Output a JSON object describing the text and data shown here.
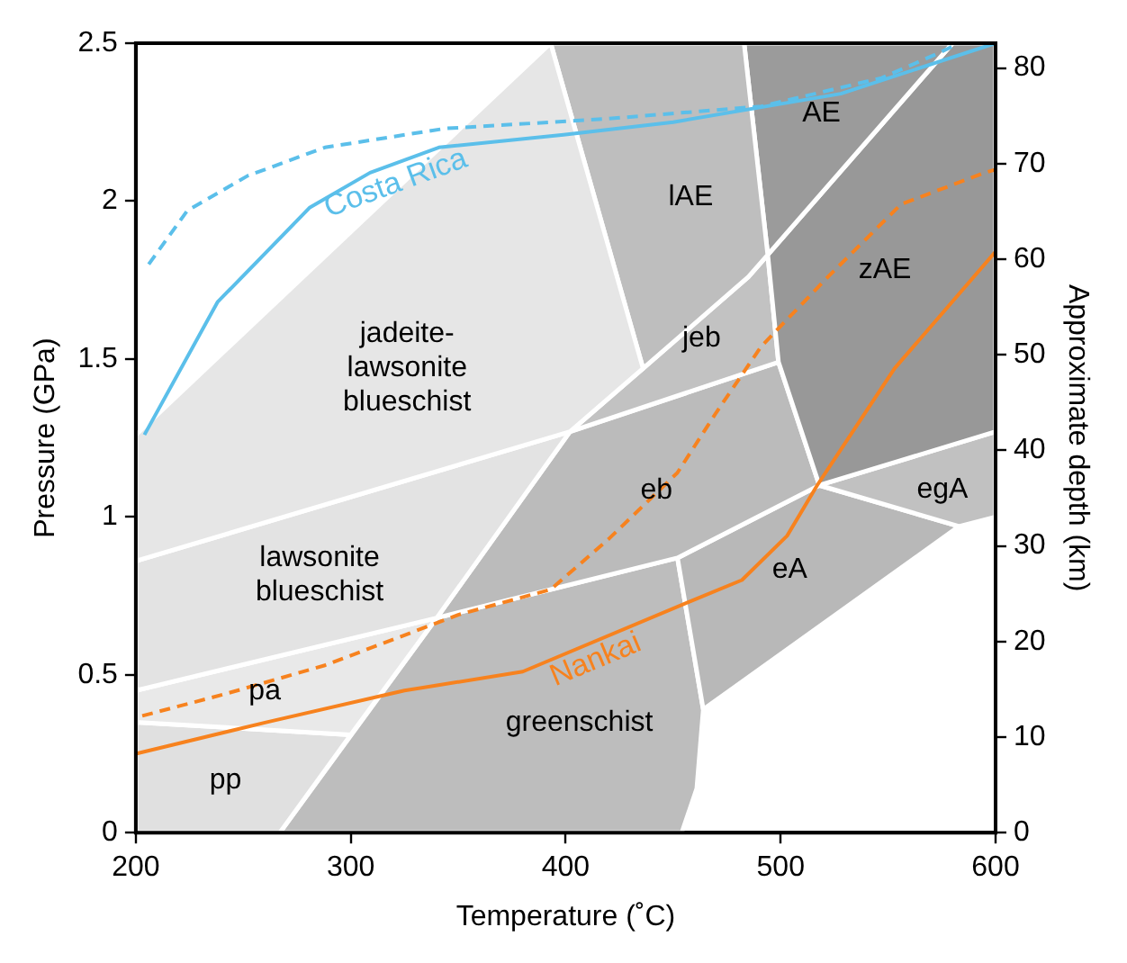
{
  "chart_data": {
    "type": "line",
    "xlabel": "Temperature (˚C)",
    "ylabel": "Pressure (GPa)",
    "y2label": "Approximate depth (km)",
    "xlim": [
      200,
      600
    ],
    "xticks": [
      200,
      300,
      400,
      500,
      600
    ],
    "ylim": [
      0,
      2.5
    ],
    "yticks": [
      0,
      0.5,
      1.0,
      1.5,
      2.0,
      2.5
    ],
    "y2lim": [
      0,
      82.6
    ],
    "y2ticks": [
      0,
      10,
      20,
      30,
      40,
      50,
      60,
      70,
      80
    ],
    "grid": false,
    "legend": false,
    "marker": "none",
    "series": [
      {
        "type": "area",
        "name": "jadeite-\nlawsonite\nblueschist",
        "color": "#e6e6e6",
        "x": [
          200,
          393,
          436,
          402,
          200
        ],
        "values": [
          1.26,
          2.5,
          1.47,
          1.27,
          0.86
        ]
      },
      {
        "type": "area",
        "name": "lawsonite\nblueschist",
        "color": "#e3e3e3",
        "x": [
          200,
          402,
          340,
          200
        ],
        "values": [
          0.86,
          1.27,
          0.68,
          0.45
        ]
      },
      {
        "type": "area",
        "name": "pa",
        "color": "#e9e9e9",
        "x": [
          200,
          340,
          300,
          200
        ],
        "values": [
          0.45,
          0.68,
          0.31,
          0.35
        ]
      },
      {
        "type": "area",
        "name": "pp",
        "color": "#e0e0e0",
        "x": [
          200,
          300,
          267,
          200
        ],
        "values": [
          0.35,
          0.31,
          0,
          0
        ]
      },
      {
        "type": "area",
        "name": "lAE",
        "color": "#bebebe",
        "x": [
          393,
          483,
          494,
          485,
          436
        ],
        "values": [
          2.5,
          2.5,
          1.83,
          1.76,
          1.47
        ]
      },
      {
        "type": "area",
        "name": "AE",
        "color": "#9b9b9b",
        "x": [
          483,
          580,
          494
        ],
        "values": [
          2.5,
          2.5,
          1.83
        ]
      },
      {
        "type": "area",
        "name": "zAE",
        "color": "#989898",
        "x": [
          494,
          580,
          600,
          600,
          518,
          499
        ],
        "values": [
          1.83,
          2.5,
          2.5,
          1.27,
          1.1,
          1.49
        ]
      },
      {
        "type": "area",
        "name": "jeb",
        "color": "#c2c2c2",
        "x": [
          436,
          485,
          494,
          499,
          402
        ],
        "values": [
          1.47,
          1.76,
          1.83,
          1.49,
          1.27
        ]
      },
      {
        "type": "area",
        "name": "eb",
        "color": "#bbbbbb",
        "x": [
          402,
          499,
          518,
          452,
          340
        ],
        "values": [
          1.27,
          1.49,
          1.1,
          0.87,
          0.68
        ]
      },
      {
        "type": "area",
        "name": "egA",
        "color": "#c1c1c1",
        "x": [
          518,
          600,
          600,
          583
        ],
        "values": [
          1.1,
          1.27,
          1.0,
          0.97
        ]
      },
      {
        "type": "area",
        "name": "eA",
        "color": "#b8b8b8",
        "x": [
          452,
          518,
          583,
          464
        ],
        "values": [
          0.87,
          1.1,
          0.97,
          0.39
        ]
      },
      {
        "type": "area",
        "name": "greenschist",
        "color": "#bdbdbd",
        "x": [
          267,
          340,
          452,
          464,
          461,
          454
        ],
        "values": [
          0,
          0.68,
          0.87,
          0.39,
          0.14,
          0
        ]
      },
      {
        "type": "line",
        "color": "#5bbfea",
        "line_style": "dashed",
        "x": [
          206,
          224,
          252,
          288,
          344,
          418,
          491,
          547,
          574,
          583
        ],
        "values": [
          1.8,
          1.97,
          2.08,
          2.17,
          2.23,
          2.26,
          2.3,
          2.39,
          2.47,
          2.5
        ]
      },
      {
        "type": "line",
        "name": "Costa Rica",
        "color": "#5bbfea",
        "line_style": "solid",
        "x": [
          204,
          238,
          281,
          309,
          341,
          399,
          450,
          528,
          600
        ],
        "values": [
          1.26,
          1.68,
          1.98,
          2.09,
          2.17,
          2.21,
          2.25,
          2.34,
          2.5
        ]
      },
      {
        "type": "line",
        "color": "#f7821e",
        "line_style": "dashed",
        "x": [
          203,
          242,
          288,
          350,
          393,
          420,
          452,
          470,
          491,
          522,
          556,
          595,
          600
        ],
        "values": [
          0.37,
          0.44,
          0.53,
          0.69,
          0.77,
          0.93,
          1.14,
          1.33,
          1.54,
          1.76,
          1.99,
          2.09,
          2.1
        ]
      },
      {
        "type": "line",
        "name": "Nankai",
        "color": "#f7821e",
        "line_style": "solid",
        "x": [
          200,
          261,
          325,
          380,
          457,
          482,
          503,
          517,
          553,
          600
        ],
        "values": [
          0.25,
          0.35,
          0.45,
          0.51,
          0.73,
          0.8,
          0.94,
          1.1,
          1.47,
          1.84
        ]
      }
    ]
  }
}
